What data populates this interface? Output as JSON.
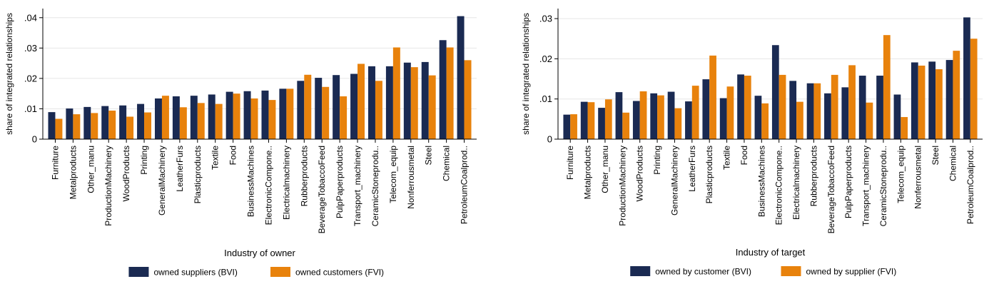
{
  "colors": {
    "navy": "#1a2a52",
    "orange": "#e8820c",
    "grid": "#e6e6e6",
    "axis": "#000000"
  },
  "chart_data": [
    {
      "type": "bar",
      "xlabel": "Industry of owner",
      "ylabel": "share of integrated relationships",
      "ylim": [
        0,
        0.043
      ],
      "yticks": [
        0,
        0.01,
        0.02,
        0.03,
        0.04
      ],
      "ytick_labels": [
        "0",
        ".01",
        ".02",
        ".03",
        ".04"
      ],
      "grid": true,
      "legend_position": "bottom",
      "categories": [
        "Furniture",
        "Metalproducts",
        "Other_manu",
        "ProductionMachinery",
        "WoodProducts",
        "Printing",
        "GeneralMachinery",
        "LeatherFurs",
        "Plasticproducts",
        "Textile",
        "Food",
        "BusinessMachines",
        "ElectronicCompone..",
        "Electricalmachinery",
        "Rubberproducts",
        "BeverageTobaccoFeed",
        "PulpPaperproducts",
        "Transport_machinery",
        "CeramicStoneprodu..",
        "Telecom_equip",
        "Nonferrousmetal",
        "Steel",
        "Chemical",
        "PetroleumCoalprod.."
      ],
      "series": [
        {
          "name": "owned suppliers (BVI)",
          "color": "#1a2a52",
          "values": [
            0.0089,
            0.0101,
            0.0106,
            0.0109,
            0.0111,
            0.0116,
            0.0134,
            0.0141,
            0.0143,
            0.0147,
            0.0156,
            0.0158,
            0.016,
            0.0166,
            0.0192,
            0.0202,
            0.0211,
            0.0215,
            0.024,
            0.024,
            0.0252,
            0.0254,
            0.0326,
            0.0405
          ]
        },
        {
          "name": "owned customers (FVI)",
          "color": "#e8820c",
          "values": [
            0.0067,
            0.0082,
            0.0086,
            0.0094,
            0.0074,
            0.0088,
            0.0143,
            0.0105,
            0.0119,
            0.0116,
            0.015,
            0.0134,
            0.0129,
            0.0166,
            0.0212,
            0.0172,
            0.0141,
            0.0248,
            0.0192,
            0.0302,
            0.0237,
            0.021,
            0.0302,
            0.026
          ]
        }
      ]
    },
    {
      "type": "bar",
      "xlabel": "Industry of target",
      "ylabel": "share of integrated relationships",
      "ylim": [
        0,
        0.0325
      ],
      "yticks": [
        0,
        0.01,
        0.02,
        0.03
      ],
      "ytick_labels": [
        "0",
        ".01",
        ".02",
        ".03"
      ],
      "grid": true,
      "legend_position": "bottom",
      "categories": [
        "Furniture",
        "Metalproducts",
        "Other_manu",
        "ProductionMachinery",
        "WoodProducts",
        "Printing",
        "GeneralMachinery",
        "LeatherFurs",
        "Plasticproducts",
        "Textile",
        "Food",
        "BusinessMachines",
        "ElectronicCompone..",
        "Electricalmachinery",
        "Rubberproducts",
        "BeverageTobaccoFeed",
        "PulpPaperproducts",
        "Transport_machinery",
        "CeramicStoneprodu..",
        "Telecom_equip",
        "Nonferrousmetal",
        "Steel",
        "Chemical",
        "PetroleumCoalprod.."
      ],
      "series": [
        {
          "name": "owned by customer (BVI)",
          "color": "#1a2a52",
          "values": [
            0.0061,
            0.0093,
            0.0078,
            0.0117,
            0.0095,
            0.0114,
            0.0118,
            0.0094,
            0.0149,
            0.0102,
            0.0161,
            0.0108,
            0.0234,
            0.0145,
            0.0139,
            0.0114,
            0.0129,
            0.0158,
            0.0158,
            0.0111,
            0.0191,
            0.0193,
            0.0197,
            0.0303
          ]
        },
        {
          "name": "owned by supplier (FVI)",
          "color": "#e8820c",
          "values": [
            0.0062,
            0.0092,
            0.0099,
            0.0066,
            0.0119,
            0.0109,
            0.0077,
            0.0133,
            0.0208,
            0.0131,
            0.0158,
            0.0089,
            0.016,
            0.0093,
            0.0139,
            0.016,
            0.0184,
            0.0091,
            0.0259,
            0.0055,
            0.0183,
            0.0174,
            0.022,
            0.025
          ]
        }
      ]
    }
  ]
}
